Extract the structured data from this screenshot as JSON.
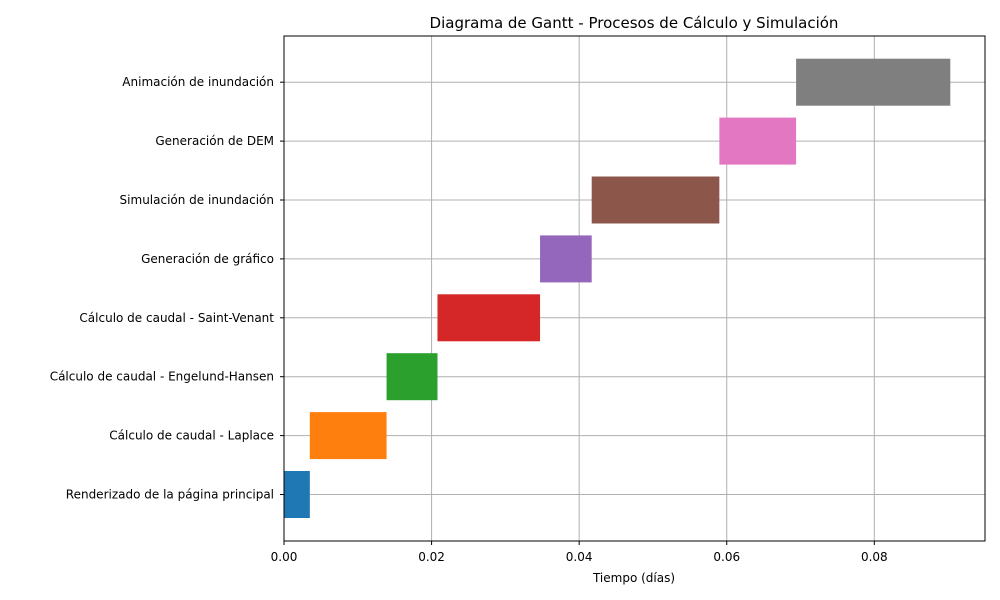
{
  "chart_data": {
    "type": "bar",
    "orientation": "horizontal",
    "title": "Diagrama de Gantt - Procesos de Cálculo y Simulación",
    "xlabel": "Tiempo (días)",
    "ylabel": "",
    "xlim": [
      0,
      0.095
    ],
    "xticks": [
      0.0,
      0.02,
      0.04,
      0.06,
      0.08
    ],
    "xtick_labels": [
      "0.00",
      "0.02",
      "0.04",
      "0.06",
      "0.08"
    ],
    "grid": true,
    "tasks": [
      {
        "name": "Renderizado de la página principal",
        "start": 0.0,
        "end": 0.0035,
        "color": "#1f77b4"
      },
      {
        "name": "Cálculo de caudal - Laplace",
        "start": 0.0035,
        "end": 0.0139,
        "color": "#ff7f0e"
      },
      {
        "name": "Cálculo de caudal - Engelund-Hansen",
        "start": 0.0139,
        "end": 0.0208,
        "color": "#2ca02c"
      },
      {
        "name": "Cálculo de caudal - Saint-Venant",
        "start": 0.0208,
        "end": 0.0347,
        "color": "#d62728"
      },
      {
        "name": "Generación de gráfico",
        "start": 0.0347,
        "end": 0.0417,
        "color": "#9467bd"
      },
      {
        "name": "Simulación de inundación",
        "start": 0.0417,
        "end": 0.059,
        "color": "#8c564b"
      },
      {
        "name": "Generación de DEM",
        "start": 0.059,
        "end": 0.0694,
        "color": "#e377c2"
      },
      {
        "name": "Animación de inundación",
        "start": 0.0694,
        "end": 0.0903,
        "color": "#7f7f7f"
      }
    ]
  }
}
